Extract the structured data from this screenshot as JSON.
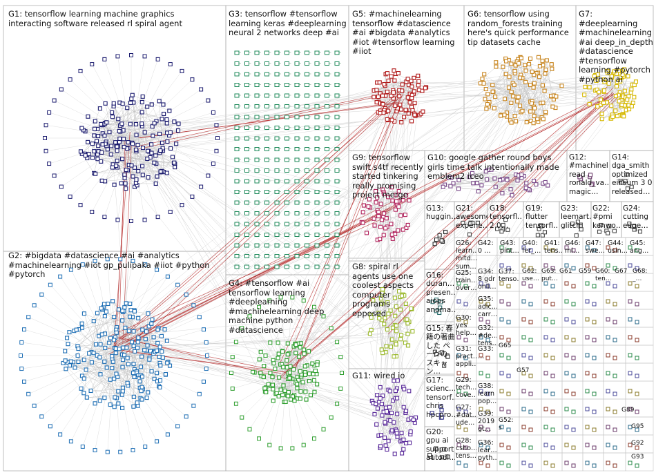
{
  "groups": [
    {
      "id": "G1",
      "label": "G1: tensorflow learning machine graphics interacting software released rl spiral agent",
      "color": "#1a1a6e"
    },
    {
      "id": "G2",
      "label": "G2: #bigdata #datascience #ai #analytics #machinelearning #iot gp_pulipaka #iiot #python #pytorch",
      "color": "#1f6fb5"
    },
    {
      "id": "G3",
      "label": "G3: tensorflow #tensorflow learning keras #deeplearning neural 2 networks deep #ai",
      "color": "#1d8a5a"
    },
    {
      "id": "G4",
      "label": "G4: #tensorflow #ai tensorflow learning #deeplearning #machinelearning deep machine python #datascience",
      "color": "#2e9e2e"
    },
    {
      "id": "G5",
      "label": "G5: #machinelearning tensorflow #datascience #ai #bigdata #analytics #iot #tensorflow learning #iiot",
      "color": "#b01818"
    },
    {
      "id": "G6",
      "label": "G6: tensorflow using random_forests training here's quick performance tip datasets cache",
      "color": "#c8851e"
    },
    {
      "id": "G7",
      "label": "G7: #deeplearning #machinelearning #ai deep_in_depth #datascience #tensorflow learning #pytorch #python ai",
      "color": "#d6b800"
    },
    {
      "id": "G8",
      "label": "G8: spiral rl agents use one coolest aspects computer programs opposed",
      "color": "#9ab82a"
    },
    {
      "id": "G9",
      "label": "G9: tensorflow swift s4tf recently started tinkering really promising project merge",
      "color": "#b0205a"
    },
    {
      "id": "G10",
      "label": "G10: google gather round boys girls time talk intentionally made emblem2 iceo",
      "color": "#7a4a8a"
    },
    {
      "id": "G11",
      "label": "G11: wired io",
      "color": "#5a2a9a"
    },
    {
      "id": "G12",
      "label": "G12: #machinel… read ronald_va… magic…",
      "color": "#6a3a6a"
    },
    {
      "id": "G13",
      "label": "G13: huggin…",
      "color": "#2a2a2a"
    },
    {
      "id": "G14",
      "label": "G14: dga_smith optimized einsum 3 0 released…",
      "color": "#4a4a4a"
    },
    {
      "id": "G15",
      "label": "G15: 春籍の著曲した ページの スキャン…",
      "color": "#3a3a3a"
    },
    {
      "id": "G16",
      "label": "G16: duran… presen… aiops anoma…",
      "color": "#2a6a6a"
    },
    {
      "id": "G17",
      "label": "G17: scienc… tensorf… chris hpcpro…",
      "color": "#3a3a8a"
    },
    {
      "id": "G18",
      "label": "G18: tensorfl… 2 0…",
      "color": "#4a4a4a"
    },
    {
      "id": "G19",
      "label": "G19: flutter tensorfl…",
      "color": "#4a4a4a"
    },
    {
      "id": "G20",
      "label": "G20: gpu ai support autodi…",
      "color": "#3a3a3a"
    },
    {
      "id": "G21",
      "label": "G21: awesome expene…",
      "color": "#4a4a4a"
    },
    {
      "id": "G22",
      "label": "G22: #pmi kenwo…",
      "color": "#4a4a4a"
    },
    {
      "id": "G23",
      "label": "G23: leemart… glitch",
      "color": "#4a4a4a"
    },
    {
      "id": "G24",
      "label": "G24: cutting edge…",
      "color": "#4a4a4a"
    },
    {
      "id": "G25",
      "label": "G25: train… over…",
      "color": "#4a4a4a"
    },
    {
      "id": "G26",
      "label": "G26: learn… mitd… sum…",
      "color": "#4a4a4a"
    },
    {
      "id": "G27",
      "label": "G27: #dat… ude…",
      "color": "#4a4a4a"
    },
    {
      "id": "G28",
      "label": "G28: csho… tens…",
      "color": "#4a4a4a"
    },
    {
      "id": "G29",
      "label": "G29: tech… cove…",
      "color": "#4a4a4a"
    },
    {
      "id": "G30",
      "label": "G30: yes help…",
      "color": "#4a4a4a"
    },
    {
      "id": "G31",
      "label": "G31: pract… appli…",
      "color": "#4a4a4a"
    },
    {
      "id": "G32",
      "label": "G32: #de… tens…",
      "color": "#4a4a4a"
    },
    {
      "id": "G33",
      "label": "G33: …",
      "color": "#4a4a4a"
    },
    {
      "id": "G34",
      "label": "G34: 8 gdr onli…",
      "color": "#4a4a4a"
    },
    {
      "id": "G35",
      "label": "G35: adic… carr…",
      "color": "#4a4a4a"
    },
    {
      "id": "G36",
      "label": "G36: lear… pyth…",
      "color": "#4a4a4a"
    },
    {
      "id": "G37",
      "label": "G37: tenso…",
      "color": "#4a4a4a"
    },
    {
      "id": "G38",
      "label": "G38: learn pop…",
      "color": "#4a4a4a"
    },
    {
      "id": "G39",
      "label": "G39: 2019 gt…",
      "color": "#4a4a4a"
    },
    {
      "id": "G40",
      "label": "G40: fer_…",
      "color": "#4a4a4a"
    },
    {
      "id": "G41",
      "label": "G41: tens…",
      "color": "#4a4a4a"
    },
    {
      "id": "G42",
      "label": "G42: 0 …",
      "color": "#4a4a4a"
    },
    {
      "id": "G43",
      "label": "G43: pint…",
      "color": "#4a4a4a"
    },
    {
      "id": "G44",
      "label": "G44: usin…",
      "color": "#4a4a4a"
    },
    {
      "id": "G45",
      "label": "G45: ang…",
      "color": "#4a4a4a"
    },
    {
      "id": "G46",
      "label": "G46: ml…",
      "color": "#4a4a4a"
    },
    {
      "id": "G47",
      "label": "G47: swe…",
      "color": "#4a4a4a"
    },
    {
      "id": "G52",
      "label": "G52: s",
      "color": "#4a4a4a"
    },
    {
      "id": "G57",
      "label": "G57",
      "color": "#4a4a4a"
    },
    {
      "id": "G59",
      "label": "G59",
      "color": "#4a4a4a"
    },
    {
      "id": "G60",
      "label": "G60: ten…",
      "color": "#4a4a4a"
    },
    {
      "id": "G61",
      "label": "G61",
      "color": "#4a4a4a"
    },
    {
      "id": "G62",
      "label": "G62: use…",
      "color": "#4a4a4a"
    },
    {
      "id": "G63",
      "label": "G63: put…",
      "color": "#4a4a4a"
    },
    {
      "id": "G65",
      "label": "G65",
      "color": "#4a4a4a"
    },
    {
      "id": "G67",
      "label": "G67",
      "color": "#4a4a4a"
    },
    {
      "id": "G68",
      "label": "G68: _…",
      "color": "#4a4a4a"
    },
    {
      "id": "G89",
      "label": "G89",
      "color": "#4a4a4a"
    },
    {
      "id": "G92",
      "label": "G92",
      "color": "#4a4a4a"
    },
    {
      "id": "G93",
      "label": "G93",
      "color": "#4a4a4a"
    },
    {
      "id": "G95",
      "label": "G95",
      "color": "#4a4a4a"
    }
  ]
}
